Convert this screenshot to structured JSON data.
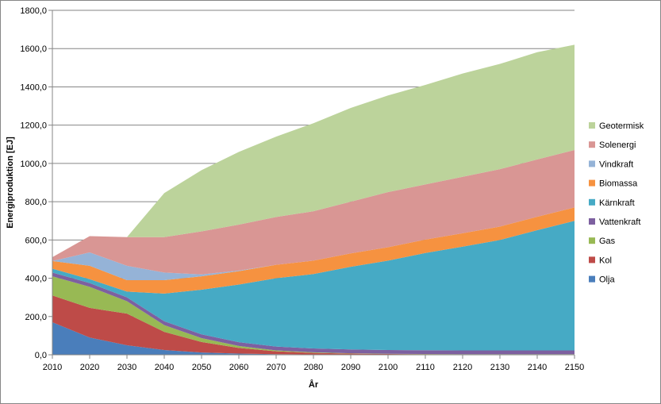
{
  "chart_data": {
    "type": "area",
    "stacked": true,
    "title": "",
    "xlabel": "År",
    "ylabel": "Energiproduktion [EJ]",
    "x": [
      2010,
      2020,
      2030,
      2040,
      2050,
      2060,
      2070,
      2080,
      2090,
      2100,
      2110,
      2120,
      2130,
      2140,
      2150
    ],
    "ylim": [
      0,
      1800
    ],
    "yticks": [
      "0,0",
      "200,0",
      "400,0",
      "600,0",
      "800,0",
      "1000,0",
      "1200,0",
      "1400,0",
      "1600,0",
      "1800,0"
    ],
    "grid": "horizontal",
    "legend_position": "right",
    "series": [
      {
        "name": "Olja",
        "color": "#4a7ebb",
        "values": [
          170,
          90,
          50,
          25,
          12,
          6,
          3,
          2,
          1,
          1,
          1,
          0,
          0,
          0,
          0
        ]
      },
      {
        "name": "Kol",
        "color": "#be4b48",
        "values": [
          140,
          155,
          165,
          95,
          55,
          30,
          15,
          8,
          5,
          3,
          2,
          2,
          2,
          2,
          2
        ]
      },
      {
        "name": "Gas",
        "color": "#98b954",
        "values": [
          100,
          110,
          65,
          35,
          20,
          10,
          5,
          3,
          2,
          1,
          1,
          1,
          1,
          1,
          1
        ]
      },
      {
        "name": "Vattenkraft",
        "color": "#7d60a0",
        "values": [
          20,
          20,
          20,
          20,
          20,
          20,
          20,
          20,
          20,
          20,
          20,
          20,
          20,
          20,
          20
        ]
      },
      {
        "name": "Kärnkraft",
        "color": "#46aac5",
        "values": [
          20,
          20,
          30,
          145,
          233,
          301,
          357,
          389,
          432,
          467,
          508,
          542,
          577,
          628,
          677
        ]
      },
      {
        "name": "Biomassa",
        "color": "#f69240",
        "values": [
          40,
          70,
          60,
          70,
          70,
          70,
          70,
          70,
          70,
          70,
          70,
          70,
          70,
          70,
          70
        ]
      },
      {
        "name": "Vindkraft",
        "color": "#95b3d7",
        "values": [
          0,
          70,
          75,
          40,
          10,
          3,
          0,
          0,
          0,
          0,
          0,
          0,
          0,
          0,
          0
        ]
      },
      {
        "name": "Solenergi",
        "color": "#d99694",
        "values": [
          20,
          85,
          150,
          185,
          225,
          240,
          250,
          258,
          270,
          288,
          288,
          295,
          300,
          300,
          300
        ]
      },
      {
        "name": "Geotermisk",
        "color": "#bcd39b",
        "values": [
          0,
          0,
          0,
          230,
          320,
          380,
          420,
          460,
          490,
          505,
          520,
          540,
          550,
          560,
          550
        ]
      }
    ]
  }
}
